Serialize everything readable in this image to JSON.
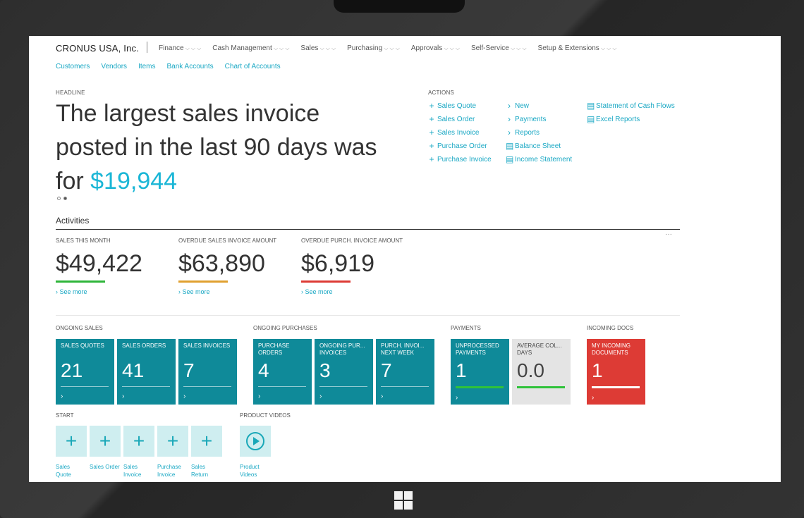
{
  "header": {
    "company": "CRONUS USA, Inc.",
    "menu": [
      "Finance",
      "Cash Management",
      "Sales",
      "Purchasing",
      "Approvals",
      "Self-Service",
      "Setup & Extensions"
    ],
    "subnav": [
      "Customers",
      "Vendors",
      "Items",
      "Bank Accounts",
      "Chart of Accounts"
    ]
  },
  "headline": {
    "label": "HEADLINE",
    "text": "The largest sales invoice posted in the last 90 days was for",
    "amount": "$19,944"
  },
  "actions": {
    "label": "ACTIONS",
    "col1": [
      "Sales Quote",
      "Sales Order",
      "Sales Invoice",
      "Purchase Order",
      "Purchase Invoice"
    ],
    "col2": [
      "New",
      "Payments",
      "Reports",
      "Balance Sheet",
      "Income Statement"
    ],
    "col3": [
      "Statement of Cash Flows",
      "Excel Reports"
    ]
  },
  "activities": {
    "title": "Activities",
    "kpis": [
      {
        "caption": "SALES THIS MONTH",
        "value": "$49,422",
        "color": "#2fb53a",
        "more": "See more"
      },
      {
        "caption": "OVERDUE SALES INVOICE AMOUNT",
        "value": "$63,890",
        "color": "#e0a030",
        "more": "See more"
      },
      {
        "caption": "OVERDUE PURCH. INVOICE AMOUNT",
        "value": "$6,919",
        "color": "#dd3b35",
        "more": "See more"
      }
    ]
  },
  "groups": {
    "ongoing_sales": {
      "label": "ONGOING SALES",
      "tiles": [
        {
          "caption": "SALES QUOTES",
          "value": "21"
        },
        {
          "caption": "SALES ORDERS",
          "value": "41"
        },
        {
          "caption": "SALES INVOICES",
          "value": "7"
        }
      ]
    },
    "ongoing_purchases": {
      "label": "ONGOING PURCHASES",
      "tiles": [
        {
          "caption": "PURCHASE ORDERS",
          "value": "4"
        },
        {
          "caption": "ONGOING PUR... INVOICES",
          "value": "3"
        },
        {
          "caption": "PURCH. INVOI... NEXT WEEK",
          "value": "7"
        }
      ]
    },
    "payments": {
      "label": "PAYMENTS",
      "tiles": [
        {
          "caption": "UNPROCESSED PAYMENTS",
          "value": "1"
        },
        {
          "caption": "AVERAGE COL... DAYS",
          "value": "0.0"
        }
      ]
    },
    "incoming": {
      "label": "INCOMING DOCS",
      "tiles": [
        {
          "caption": "MY INCOMING DOCUMENTS",
          "value": "1"
        }
      ]
    }
  },
  "chevron": "›",
  "start": {
    "label": "START",
    "items": [
      "Sales Quote",
      "Sales Order",
      "Sales Invoice",
      "Purchase Invoice",
      "Sales Return"
    ]
  },
  "videos": {
    "label": "PRODUCT VIDEOS",
    "items": [
      "Product Videos"
    ]
  },
  "colors": {
    "accent": "#1ab6d6",
    "tile_teal": "#0f8a99",
    "tile_red": "#dd3b35",
    "tile_grey": "#e4e4e4"
  }
}
